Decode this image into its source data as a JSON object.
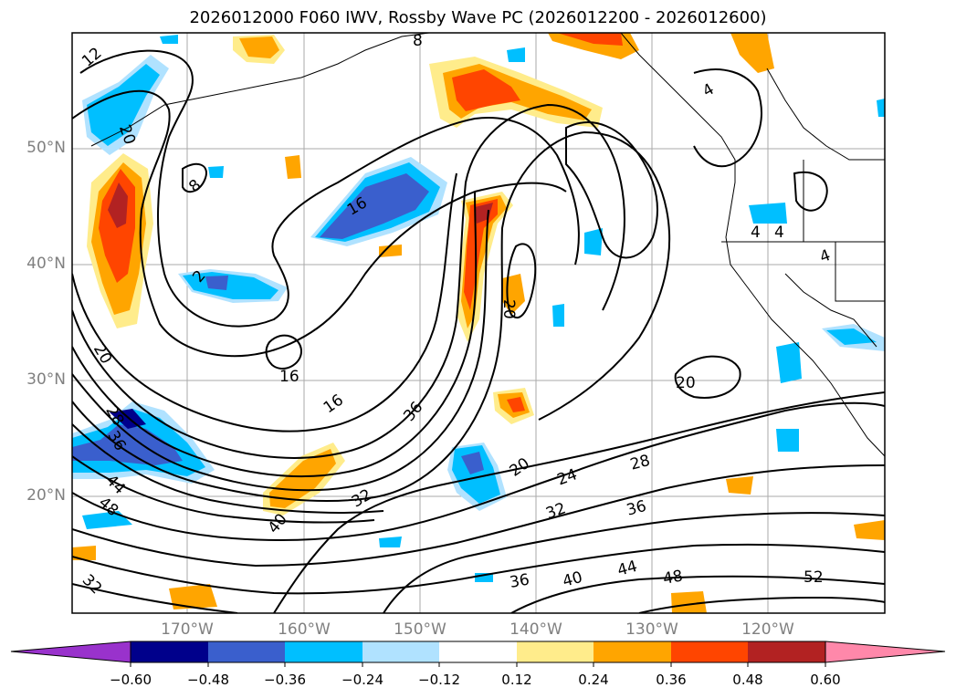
{
  "title": "2026012000 F060 IWV, Rossby Wave PC (2026012200 - 2026012600)",
  "map": {
    "lat_labels": [
      "50°N",
      "40°N",
      "30°N",
      "20°N"
    ],
    "lon_labels": [
      "170°W",
      "160°W",
      "150°W",
      "140°W",
      "130°W",
      "120°W"
    ],
    "contour_labels": [
      "12",
      "8",
      "20",
      "8",
      "16",
      "2",
      "16",
      "16",
      "36",
      "20",
      "28",
      "36",
      "44",
      "48",
      "32",
      "40",
      "32",
      "20",
      "24",
      "28",
      "32",
      "36",
      "36",
      "40",
      "44",
      "48",
      "52",
      "20",
      "4",
      "4",
      "4",
      "4",
      "20"
    ]
  },
  "colorbar": {
    "ticks": [
      "−0.60",
      "−0.48",
      "−0.36",
      "−0.24",
      "−0.12",
      "0.12",
      "0.24",
      "0.36",
      "0.48",
      "0.60"
    ],
    "colors": [
      "#9932cc",
      "#00008b",
      "#3a5fcd",
      "#00bfff",
      "#b0e2ff",
      "#ffffff",
      "#ffec8b",
      "#ffa500",
      "#ff4500",
      "#b22222",
      "#ff88aa"
    ]
  }
}
